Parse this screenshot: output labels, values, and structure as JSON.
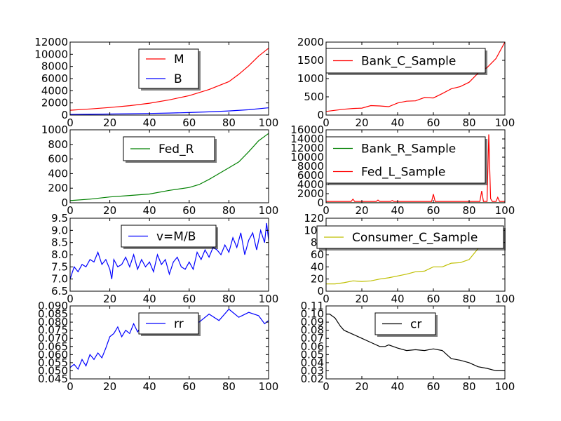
{
  "figure": {
    "background": "#ffffff"
  },
  "chart_data": [
    {
      "type": "line",
      "xlim": [
        0,
        100
      ],
      "ylim": [
        0,
        12000
      ],
      "xticks": [
        0,
        20,
        40,
        60,
        80,
        100
      ],
      "yticks": [
        0,
        2000,
        4000,
        6000,
        8000,
        10000,
        12000
      ],
      "xtick_labels": [
        "0",
        "20",
        "40",
        "60",
        "80",
        "100"
      ],
      "ytick_labels": [
        "0",
        "2000",
        "4000",
        "6000",
        "8000",
        "10000",
        "12000"
      ],
      "legend": "top-center",
      "series": [
        {
          "name": "M",
          "color": "#ff0000",
          "x": [
            0,
            10,
            20,
            30,
            40,
            50,
            60,
            70,
            80,
            85,
            90,
            95,
            100
          ],
          "y": [
            800,
            1000,
            1250,
            1550,
            1950,
            2500,
            3200,
            4200,
            5500,
            6700,
            8100,
            9700,
            11000
          ]
        },
        {
          "name": "B",
          "color": "#0000ff",
          "x": [
            0,
            10,
            20,
            30,
            40,
            50,
            60,
            70,
            80,
            90,
            100
          ],
          "y": [
            100,
            130,
            170,
            220,
            270,
            330,
            420,
            530,
            680,
            880,
            1200
          ]
        }
      ]
    },
    {
      "type": "line",
      "xlim": [
        0,
        100
      ],
      "ylim": [
        0,
        2000
      ],
      "xticks": [
        0,
        20,
        40,
        60,
        80,
        100
      ],
      "yticks": [
        0,
        500,
        1000,
        1500,
        2000
      ],
      "xtick_labels": [
        "0",
        "20",
        "40",
        "60",
        "80",
        "100"
      ],
      "ytick_labels": [
        "0",
        "500",
        "1000",
        "1500",
        "2000"
      ],
      "legend": "top-center",
      "series": [
        {
          "name": "Bank_C_Sample",
          "color": "#ff0000",
          "x": [
            0,
            5,
            10,
            15,
            20,
            25,
            30,
            35,
            40,
            45,
            50,
            55,
            60,
            65,
            70,
            75,
            80,
            85,
            90,
            95,
            100
          ],
          "y": [
            100,
            130,
            160,
            180,
            190,
            260,
            250,
            230,
            330,
            380,
            390,
            480,
            470,
            590,
            720,
            780,
            900,
            1150,
            1300,
            1550,
            2000
          ]
        }
      ]
    },
    {
      "type": "line",
      "xlim": [
        0,
        100
      ],
      "ylim": [
        0,
        1000
      ],
      "xticks": [
        0,
        20,
        40,
        60,
        80,
        100
      ],
      "yticks": [
        0,
        200,
        400,
        600,
        800,
        1000
      ],
      "xtick_labels": [
        "0",
        "20",
        "40",
        "60",
        "80",
        "100"
      ],
      "ytick_labels": [
        "0",
        "200",
        "400",
        "600",
        "800",
        "1000"
      ],
      "legend": "top-center",
      "series": [
        {
          "name": "Fed_R",
          "color": "#008000",
          "x": [
            0,
            10,
            20,
            30,
            40,
            50,
            60,
            65,
            70,
            75,
            80,
            85,
            90,
            95,
            100
          ],
          "y": [
            30,
            50,
            80,
            100,
            120,
            170,
            210,
            250,
            320,
            400,
            480,
            560,
            700,
            850,
            950
          ]
        }
      ]
    },
    {
      "type": "line",
      "xlim": [
        0,
        100
      ],
      "ylim": [
        0,
        16000
      ],
      "xticks": [
        0,
        20,
        40,
        60,
        80,
        100
      ],
      "yticks": [
        0,
        2000,
        4000,
        6000,
        8000,
        10000,
        12000,
        14000,
        16000
      ],
      "xtick_labels": [
        "0",
        "20",
        "40",
        "60",
        "80",
        "100"
      ],
      "ytick_labels": [
        "0",
        "2000",
        "4000",
        "6000",
        "8000",
        "10000",
        "12000",
        "14000",
        "16000"
      ],
      "legend": "top-center",
      "series": [
        {
          "name": "Bank_R_Sample",
          "color": "#008000",
          "x": [
            0,
            20,
            40,
            60,
            80,
            90,
            100
          ],
          "y": [
            0,
            0,
            0,
            0,
            0,
            0,
            0
          ]
        },
        {
          "name": "Fed_L_Sample",
          "color": "#ff0000",
          "x": [
            0,
            10,
            14,
            15,
            16,
            20,
            28,
            29,
            30,
            36,
            37,
            38,
            45,
            50,
            59,
            60,
            61,
            70,
            80,
            86,
            87,
            88,
            89,
            90,
            91,
            92,
            93,
            94,
            95,
            96,
            97,
            100
          ],
          "y": [
            300,
            300,
            300,
            800,
            300,
            300,
            300,
            600,
            300,
            300,
            500,
            300,
            300,
            300,
            300,
            1900,
            300,
            300,
            300,
            300,
            2600,
            300,
            300,
            300,
            15000,
            900,
            300,
            300,
            300,
            1200,
            300,
            300
          ]
        }
      ]
    },
    {
      "type": "line",
      "xlim": [
        0,
        100
      ],
      "ylim": [
        6.5,
        9.5
      ],
      "xticks": [
        0,
        20,
        40,
        60,
        80,
        100
      ],
      "yticks": [
        6.5,
        7.0,
        7.5,
        8.0,
        8.5,
        9.0,
        9.5
      ],
      "xtick_labels": [
        "0",
        "20",
        "40",
        "60",
        "80",
        "100"
      ],
      "ytick_labels": [
        "6.5",
        "7.0",
        "7.5",
        "8.0",
        "8.5",
        "9.0",
        "9.5"
      ],
      "legend": "top-center",
      "series": [
        {
          "name": "v=M/B",
          "color": "#0000ff",
          "x": [
            0,
            2,
            4,
            6,
            8,
            10,
            12,
            14,
            16,
            18,
            20,
            21,
            22,
            24,
            26,
            28,
            30,
            32,
            34,
            36,
            38,
            40,
            42,
            44,
            46,
            48,
            50,
            52,
            54,
            56,
            58,
            60,
            62,
            64,
            66,
            68,
            70,
            72,
            74,
            76,
            78,
            80,
            82,
            84,
            86,
            88,
            90,
            92,
            94,
            96,
            98,
            99,
            100
          ],
          "y": [
            7.0,
            7.5,
            7.3,
            7.6,
            7.5,
            7.8,
            7.7,
            8.1,
            7.6,
            7.8,
            7.4,
            7.0,
            7.8,
            7.5,
            7.6,
            7.9,
            7.5,
            8.0,
            7.4,
            7.8,
            7.5,
            7.7,
            7.3,
            8.0,
            7.6,
            7.8,
            7.2,
            7.7,
            7.9,
            7.5,
            7.4,
            7.7,
            7.4,
            8.1,
            7.8,
            8.2,
            7.9,
            8.3,
            8.2,
            8.0,
            8.4,
            8.1,
            8.7,
            8.3,
            8.9,
            8.0,
            8.6,
            8.9,
            8.2,
            9.0,
            8.5,
            9.3,
            8.6
          ]
        }
      ]
    },
    {
      "type": "line",
      "xlim": [
        0,
        100
      ],
      "ylim": [
        0,
        120
      ],
      "xticks": [
        0,
        20,
        40,
        60,
        80,
        100
      ],
      "yticks": [
        0,
        20,
        40,
        60,
        80,
        100,
        120
      ],
      "xtick_labels": [
        "0",
        "20",
        "40",
        "60",
        "80",
        "100"
      ],
      "ytick_labels": [
        "0",
        "20",
        "40",
        "60",
        "80",
        "100",
        "120"
      ],
      "legend": "top-center",
      "series": [
        {
          "name": "Consumer_C_Sample",
          "color": "#bfbf00",
          "x": [
            0,
            5,
            10,
            15,
            20,
            25,
            30,
            35,
            40,
            45,
            50,
            55,
            60,
            65,
            70,
            75,
            80,
            85
          ],
          "y": [
            12,
            12,
            14,
            17,
            16,
            17,
            20,
            22,
            25,
            28,
            32,
            33,
            40,
            40,
            46,
            47,
            52,
            70
          ]
        }
      ]
    },
    {
      "type": "line",
      "xlim": [
        0,
        100
      ],
      "ylim": [
        0.045,
        0.09
      ],
      "xticks": [
        0,
        20,
        40,
        60,
        80,
        100
      ],
      "yticks": [
        0.045,
        0.05,
        0.055,
        0.06,
        0.065,
        0.07,
        0.075,
        0.08,
        0.085,
        0.09
      ],
      "xtick_labels": [
        "0",
        "20",
        "40",
        "60",
        "80",
        "100"
      ],
      "ytick_labels": [
        "0.045",
        "0.050",
        "0.055",
        "0.060",
        "0.065",
        "0.070",
        "0.075",
        "0.080",
        "0.085",
        "0.090"
      ],
      "legend": "top-center",
      "series": [
        {
          "name": "rr",
          "color": "#0000ff",
          "x": [
            0,
            2,
            4,
            6,
            8,
            10,
            12,
            14,
            16,
            18,
            20,
            22,
            24,
            26,
            28,
            30,
            32,
            34,
            36,
            38,
            40,
            45,
            50,
            55,
            60,
            65,
            70,
            75,
            80,
            85,
            90,
            95,
            98,
            100
          ],
          "y": [
            0.052,
            0.054,
            0.051,
            0.057,
            0.053,
            0.06,
            0.057,
            0.061,
            0.058,
            0.064,
            0.071,
            0.073,
            0.077,
            0.071,
            0.075,
            0.073,
            0.079,
            0.074,
            0.078,
            0.076,
            0.08,
            0.078,
            0.081,
            0.079,
            0.082,
            0.08,
            0.085,
            0.081,
            0.088,
            0.083,
            0.086,
            0.084,
            0.079,
            0.081
          ]
        }
      ]
    },
    {
      "type": "line",
      "xlim": [
        0,
        100
      ],
      "ylim": [
        0.02,
        0.11
      ],
      "xticks": [
        0,
        20,
        40,
        60,
        80,
        100
      ],
      "yticks": [
        0.02,
        0.03,
        0.04,
        0.05,
        0.06,
        0.07,
        0.08,
        0.09,
        0.1,
        0.11
      ],
      "xtick_labels": [
        "0",
        "20",
        "40",
        "60",
        "80",
        "100"
      ],
      "ytick_labels": [
        "0.02",
        "0.03",
        "0.04",
        "0.05",
        "0.06",
        "0.07",
        "0.08",
        "0.09",
        "0.10",
        "0.11"
      ],
      "legend": "top-center",
      "series": [
        {
          "name": "cr",
          "color": "#000000",
          "x": [
            0,
            2,
            5,
            8,
            10,
            15,
            20,
            25,
            30,
            33,
            35,
            40,
            45,
            50,
            55,
            60,
            65,
            70,
            75,
            80,
            85,
            90,
            95,
            100
          ],
          "y": [
            0.1,
            0.1,
            0.095,
            0.085,
            0.08,
            0.075,
            0.07,
            0.065,
            0.06,
            0.06,
            0.062,
            0.058,
            0.055,
            0.056,
            0.055,
            0.057,
            0.055,
            0.045,
            0.043,
            0.04,
            0.035,
            0.033,
            0.03,
            0.03
          ]
        }
      ]
    }
  ]
}
